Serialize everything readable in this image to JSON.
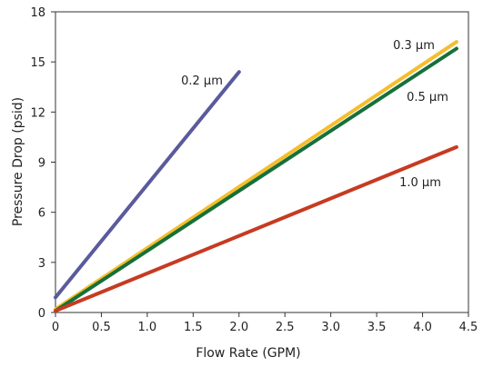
{
  "chart_data": {
    "type": "line",
    "title": "",
    "xlabel": "Flow Rate (GPM)",
    "ylabel": "Pressure Drop (psid)",
    "xlim": [
      0,
      4.5
    ],
    "ylim": [
      0,
      18
    ],
    "xticks": [
      "0",
      "0.5",
      "1.0",
      "1.5",
      "2.0",
      "2.5",
      "3.0",
      "3.5",
      "4.0",
      "4.5"
    ],
    "yticks": [
      "0",
      "3",
      "6",
      "9",
      "12",
      "15",
      "18"
    ],
    "grid": false,
    "legend": "none",
    "series": [
      {
        "name": "0.2 µm",
        "color": "#5a5a9c",
        "x": [
          0,
          2.0
        ],
        "y": [
          0.9,
          14.4
        ]
      },
      {
        "name": "0.3 µm",
        "color": "#f4be2f",
        "x": [
          0,
          4.37
        ],
        "y": [
          0.2,
          16.2
        ]
      },
      {
        "name": "0.5 µm",
        "color": "#16703a",
        "x": [
          0,
          4.37
        ],
        "y": [
          0.1,
          15.8
        ]
      },
      {
        "name": "1.0 µm",
        "color": "#c63b22",
        "x": [
          0,
          4.37
        ],
        "y": [
          0.1,
          9.9
        ]
      }
    ]
  }
}
